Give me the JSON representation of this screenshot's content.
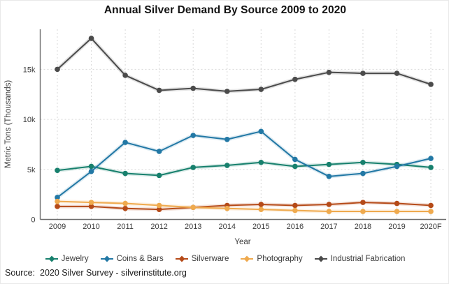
{
  "page": {
    "title": "Annual Silver Demand By Source 2009 to 2020",
    "source_note": "Source:  2020 Silver Survey - silverinstitute.org"
  },
  "chart_data": {
    "type": "line",
    "title": "Annual Silver Demand By Source 2009 to 2020",
    "xlabel": "Year",
    "ylabel": "Metric Tons (Thousands)",
    "categories": [
      "2009",
      "2010",
      "2011",
      "2012",
      "2013",
      "2014",
      "2015",
      "2016",
      "2017",
      "2018",
      "2019",
      "2020F"
    ],
    "y_ticks": [
      {
        "label": "0",
        "value": 0
      },
      {
        "label": "5k",
        "value": 5
      },
      {
        "label": "10k",
        "value": 10
      },
      {
        "label": "15k",
        "value": 15
      }
    ],
    "ylim": [
      0,
      19
    ],
    "grid": true,
    "legend_position": "bottom",
    "series": [
      {
        "name": "Jewelry",
        "color": "#17806d",
        "values": [
          4.9,
          5.3,
          4.6,
          4.4,
          5.2,
          5.4,
          5.7,
          5.3,
          5.5,
          5.7,
          5.5,
          5.2
        ]
      },
      {
        "name": "Coins & Bars",
        "color": "#2278a5",
        "values": [
          2.2,
          4.8,
          7.7,
          6.8,
          8.4,
          8.0,
          8.8,
          6.0,
          4.3,
          4.6,
          5.3,
          6.1
        ]
      },
      {
        "name": "Silverware",
        "color": "#b54a18",
        "values": [
          1.3,
          1.3,
          1.1,
          1.0,
          1.2,
          1.4,
          1.5,
          1.4,
          1.5,
          1.7,
          1.6,
          1.4
        ]
      },
      {
        "name": "Photography",
        "color": "#efaa4e",
        "values": [
          1.8,
          1.7,
          1.6,
          1.4,
          1.2,
          1.1,
          1.0,
          0.9,
          0.8,
          0.8,
          0.8,
          0.8
        ]
      },
      {
        "name": "Industrial Fabrication",
        "color": "#4b4b4b",
        "values": [
          15.0,
          18.1,
          14.4,
          12.9,
          13.1,
          12.8,
          13.0,
          14.0,
          14.7,
          14.6,
          14.6,
          13.5
        ]
      }
    ],
    "axis_color": "#6e6e6e",
    "grid_color": "#d8d8d8"
  }
}
